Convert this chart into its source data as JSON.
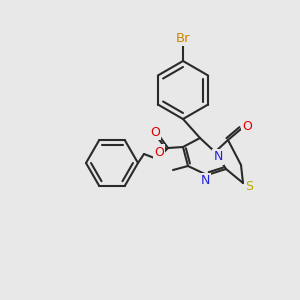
{
  "background_color": "#e8e8e8",
  "bond_color": "#2a2a2a",
  "atom_colors": {
    "Br": "#cc8800",
    "O": "#dd0000",
    "N": "#2222dd",
    "S": "#bbaa00"
  },
  "figsize": [
    3.0,
    3.0
  ],
  "dpi": 100,
  "lw": 1.5
}
